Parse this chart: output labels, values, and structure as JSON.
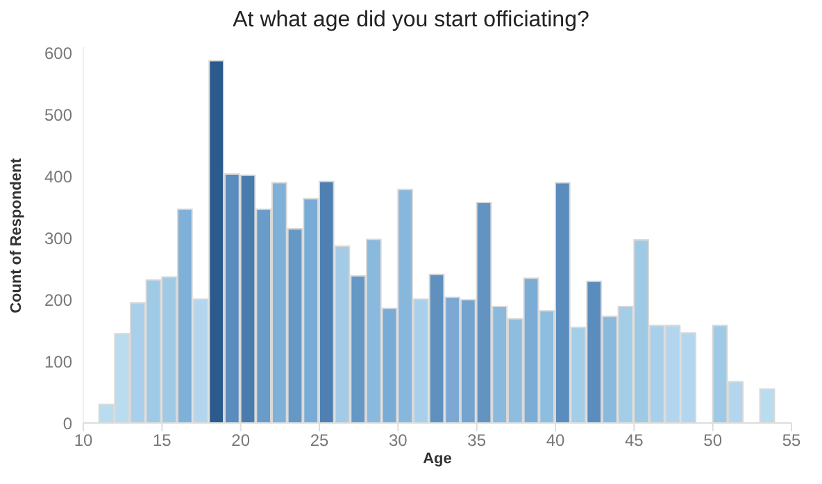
{
  "chart_data": {
    "type": "histogram",
    "title": "At what age did you start officiating?",
    "xlabel": "Age",
    "ylabel": "Count of Respondent",
    "bins": [
      11,
      12,
      13,
      14,
      15,
      16,
      17,
      18,
      19,
      20,
      21,
      22,
      23,
      24,
      25,
      26,
      27,
      28,
      29,
      30,
      31,
      32,
      33,
      34,
      35,
      36,
      37,
      38,
      39,
      40,
      41,
      42,
      43,
      44,
      45,
      46,
      47,
      48,
      49,
      50,
      51,
      52,
      53,
      54
    ],
    "values": [
      30,
      145,
      195,
      232,
      237,
      347,
      201,
      588,
      404,
      402,
      347,
      390,
      315,
      364,
      392,
      287,
      239,
      298,
      186,
      379,
      201,
      241,
      204,
      200,
      358,
      189,
      169,
      235,
      182,
      390,
      155,
      230,
      173,
      189,
      297,
      158,
      158,
      146,
      0,
      158,
      67,
      0,
      55
    ],
    "colors": [
      "#b9dcef",
      "#b9dcef",
      "#a9d0ea",
      "#9ecae5",
      "#9ecae5",
      "#7fb0d8",
      "#b3d6ee",
      "#2b5a8c",
      "#5a8cbd",
      "#4a7bad",
      "#6a9cca",
      "#7fb0d8",
      "#6598c5",
      "#78abd6",
      "#4f80b1",
      "#a4cbe6",
      "#6598c5",
      "#8ab9de",
      "#78abd6",
      "#88b7dd",
      "#a9d0ea",
      "#6090be",
      "#7ba9d3",
      "#72a4cf",
      "#6393c1",
      "#8ab9de",
      "#8ebedf",
      "#7aacd5",
      "#8ebedf",
      "#5a8cbd",
      "#a4cde8",
      "#5a8cbd",
      "#8ab9de",
      "#a4cde8",
      "#9ecae5",
      "#a9d0ea",
      "#b3d6ee",
      "#b3d6ee",
      "#b9dcef",
      "#9ecae5",
      "#b3d6ee",
      "#b9dcef",
      "#b9dcef"
    ],
    "xlim": [
      10,
      55
    ],
    "xticks": [
      10,
      15,
      20,
      25,
      30,
      35,
      40,
      45,
      50,
      55
    ],
    "ylim": [
      0,
      610
    ],
    "yticks": [
      0,
      100,
      200,
      300,
      400,
      500,
      600
    ],
    "grid": false,
    "legend": false
  }
}
